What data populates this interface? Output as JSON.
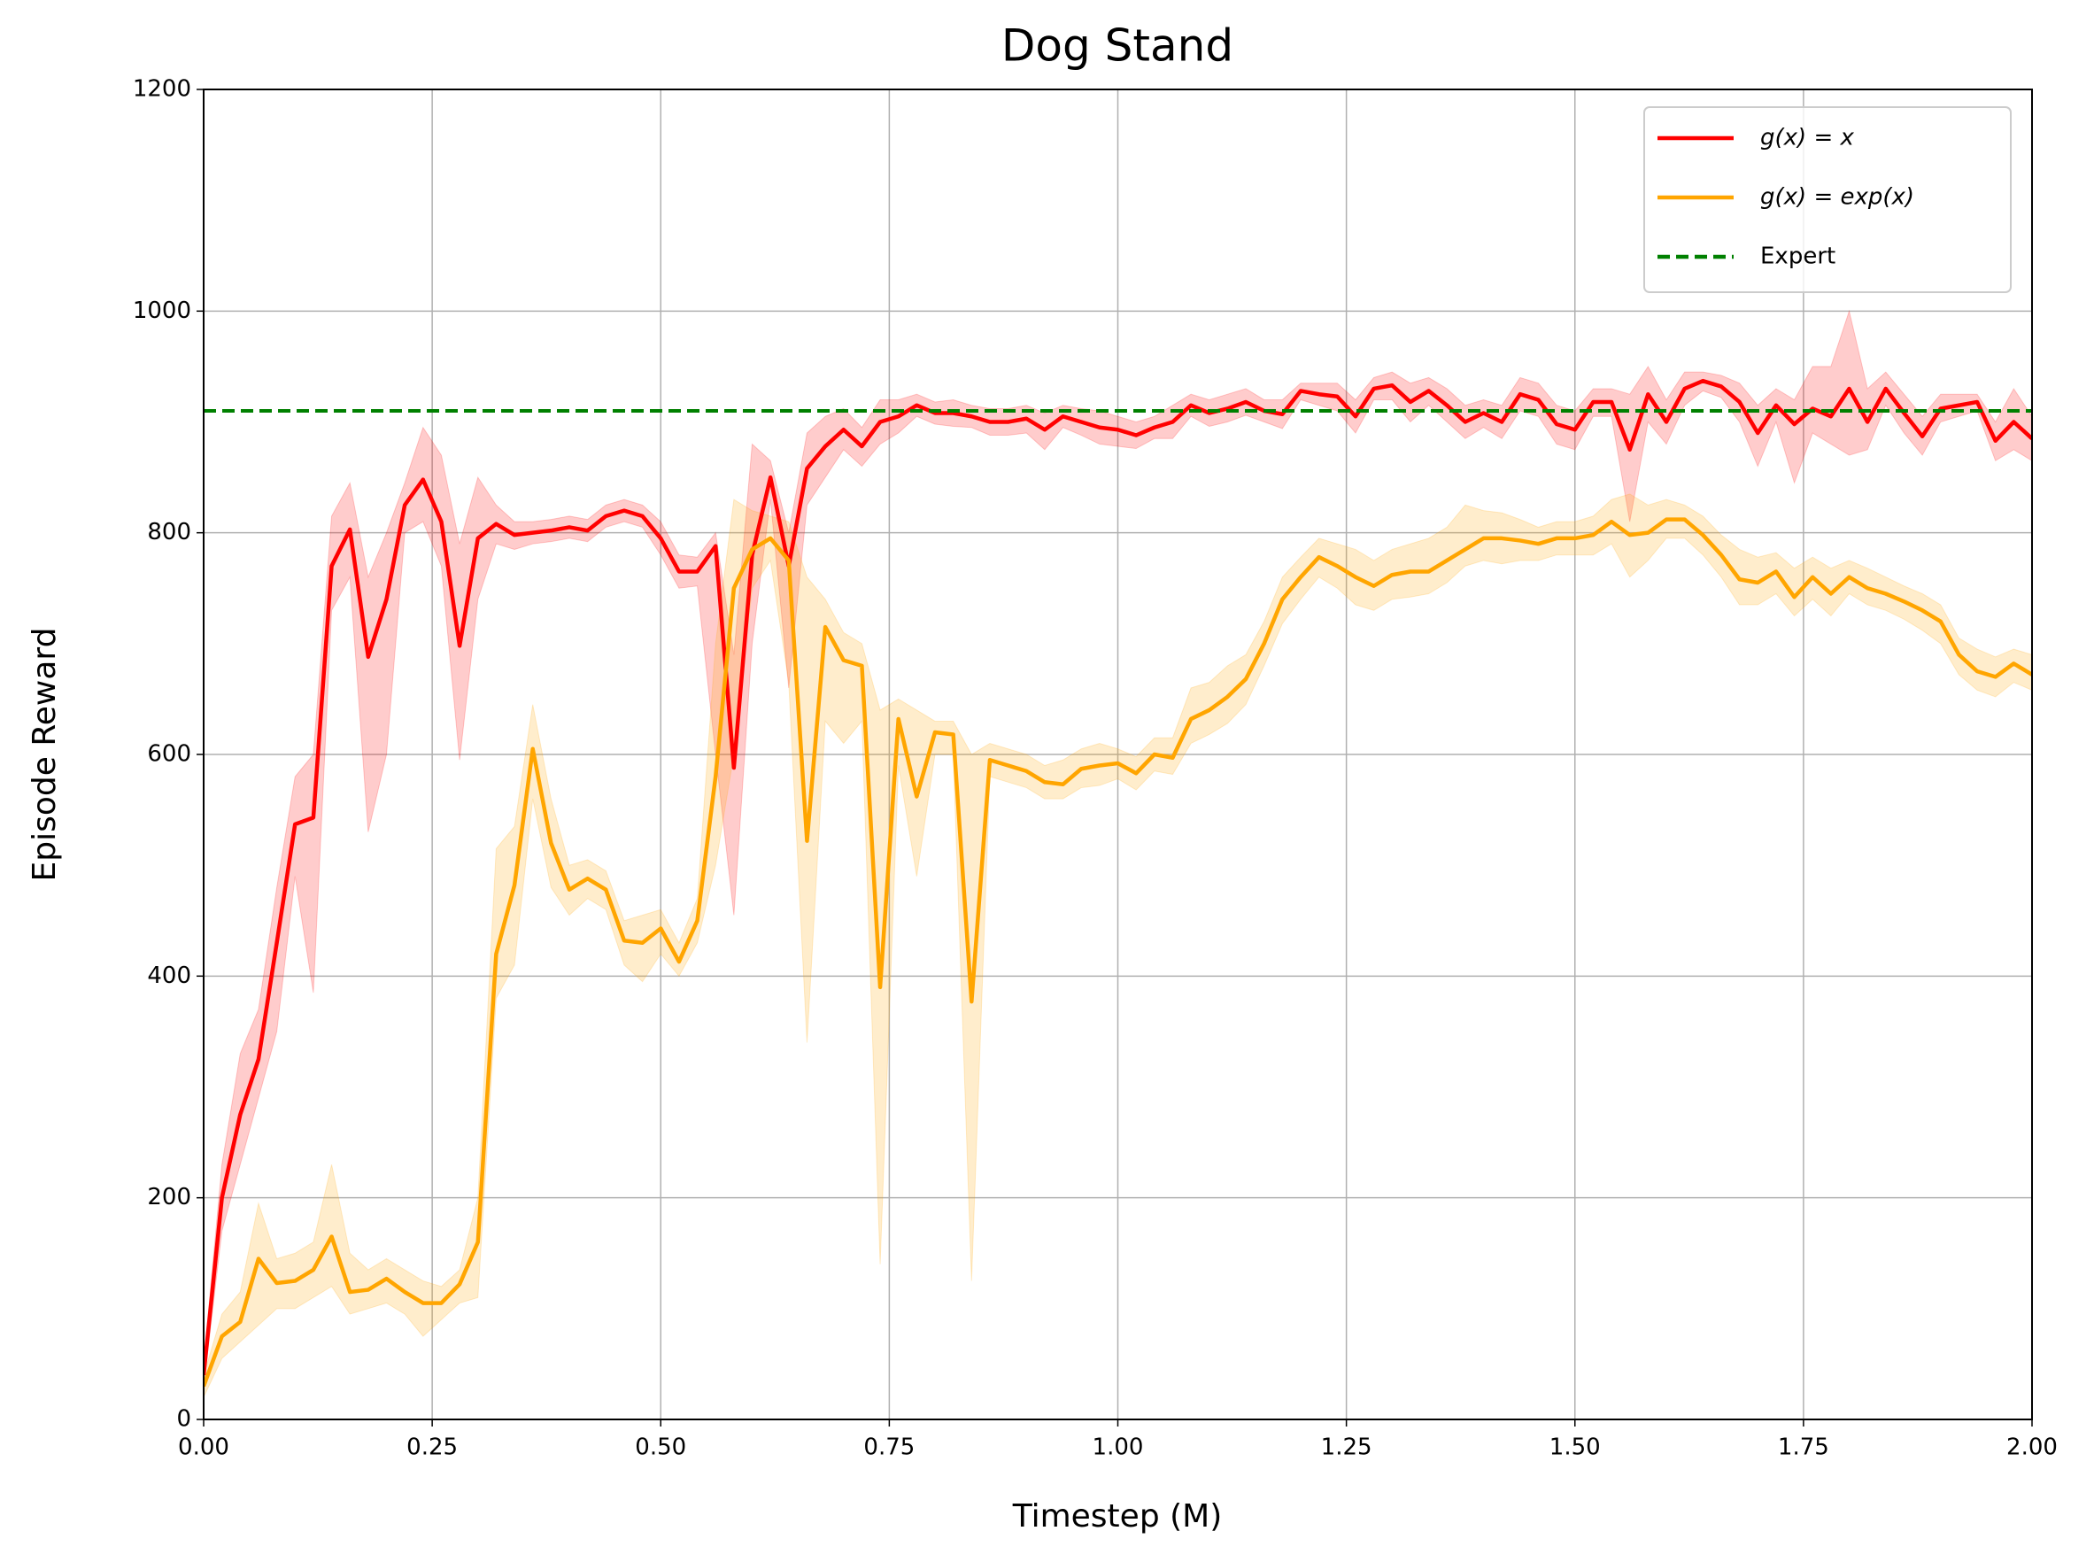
{
  "chart_data": {
    "type": "line",
    "title": "Dog Stand",
    "xlabel": "Timestep (M)",
    "ylabel": "Episode Reward",
    "x": [
      0,
      0.02,
      0.04,
      0.06,
      0.08,
      0.1,
      0.12,
      0.14,
      0.16,
      0.18,
      0.2,
      0.22,
      0.24,
      0.26,
      0.28,
      0.3,
      0.32,
      0.34,
      0.36,
      0.38,
      0.4,
      0.42,
      0.44,
      0.46,
      0.48,
      0.5,
      0.52,
      0.54,
      0.56,
      0.58,
      0.6,
      0.62,
      0.64,
      0.66,
      0.68,
      0.7,
      0.72,
      0.74,
      0.76,
      0.78,
      0.8,
      0.82,
      0.84,
      0.86,
      0.88,
      0.9,
      0.92,
      0.94,
      0.96,
      0.98,
      1,
      1.02,
      1.04,
      1.06,
      1.08,
      1.1,
      1.12,
      1.14,
      1.16,
      1.18,
      1.2,
      1.22,
      1.24,
      1.26,
      1.28,
      1.3,
      1.32,
      1.34,
      1.36,
      1.38,
      1.4,
      1.42,
      1.44,
      1.46,
      1.48,
      1.5,
      1.52,
      1.54,
      1.56,
      1.58,
      1.6,
      1.62,
      1.64,
      1.66,
      1.68,
      1.7,
      1.72,
      1.74,
      1.76,
      1.78,
      1.8,
      1.82,
      1.84,
      1.86,
      1.88,
      1.9,
      1.92,
      1.94,
      1.96,
      1.98,
      2
    ],
    "series": [
      {
        "name": "g(x) = x",
        "color": "#ff0000",
        "values": [
          40,
          200,
          275,
          325,
          430,
          537,
          543,
          770,
          803,
          688,
          740,
          825,
          848,
          810,
          698,
          795,
          808,
          798,
          800,
          802,
          805,
          802,
          815,
          820,
          815,
          795,
          765,
          765,
          788,
          588,
          780,
          850,
          770,
          858,
          878,
          893,
          878,
          900,
          905,
          915,
          908,
          908,
          905,
          900,
          900,
          903,
          893,
          905,
          900,
          895,
          893,
          888,
          895,
          900,
          915,
          908,
          912,
          918,
          910,
          907,
          928,
          925,
          923,
          905,
          930,
          933,
          918,
          928,
          915,
          900,
          908,
          900,
          925,
          920,
          898,
          893,
          918,
          918,
          875,
          925,
          900,
          930,
          937,
          932,
          918,
          890,
          915,
          898,
          912,
          905,
          930,
          900,
          930,
          908,
          887,
          912,
          915,
          918,
          883,
          900,
          885
        ],
        "upper": [
          50,
          230,
          330,
          370,
          480,
          580,
          600,
          815,
          845,
          760,
          800,
          845,
          895,
          870,
          790,
          850,
          825,
          810,
          810,
          812,
          815,
          812,
          825,
          830,
          825,
          810,
          780,
          778,
          800,
          690,
          880,
          865,
          800,
          890,
          905,
          912,
          895,
          920,
          920,
          925,
          918,
          920,
          915,
          912,
          912,
          915,
          908,
          915,
          912,
          910,
          905,
          900,
          905,
          915,
          925,
          920,
          925,
          930,
          920,
          920,
          935,
          935,
          935,
          920,
          940,
          945,
          935,
          940,
          930,
          915,
          920,
          915,
          940,
          935,
          915,
          910,
          930,
          930,
          925,
          950,
          920,
          945,
          945,
          942,
          935,
          915,
          930,
          920,
          950,
          950,
          1000,
          930,
          945,
          925,
          905,
          925,
          925,
          925,
          900,
          930,
          905
        ],
        "lower": [
          30,
          170,
          230,
          290,
          350,
          490,
          385,
          730,
          760,
          530,
          600,
          800,
          810,
          770,
          595,
          740,
          790,
          785,
          790,
          792,
          795,
          792,
          805,
          810,
          805,
          780,
          750,
          752,
          600,
          455,
          700,
          830,
          660,
          825,
          850,
          875,
          860,
          880,
          890,
          905,
          898,
          896,
          895,
          888,
          888,
          890,
          875,
          895,
          888,
          880,
          878,
          876,
          885,
          885,
          905,
          896,
          900,
          906,
          900,
          894,
          920,
          915,
          910,
          890,
          920,
          920,
          900,
          915,
          900,
          885,
          895,
          885,
          910,
          905,
          880,
          875,
          905,
          905,
          810,
          900,
          880,
          915,
          928,
          922,
          900,
          860,
          900,
          845,
          890,
          880,
          870,
          875,
          915,
          890,
          870,
          900,
          905,
          910,
          865,
          875,
          865
        ]
      },
      {
        "name": "g(x) = exp(x)",
        "color": "#ffa500",
        "values": [
          30,
          75,
          88,
          145,
          123,
          125,
          135,
          165,
          115,
          117,
          127,
          115,
          105,
          105,
          122,
          160,
          420,
          482,
          605,
          520,
          478,
          488,
          478,
          432,
          430,
          443,
          413,
          450,
          580,
          750,
          785,
          795,
          775,
          522,
          715,
          685,
          680,
          390,
          632,
          562,
          620,
          618,
          377,
          595,
          590,
          585,
          575,
          573,
          587,
          590,
          592,
          583,
          600,
          597,
          632,
          640,
          652,
          668,
          700,
          740,
          760,
          778,
          770,
          760,
          752,
          762,
          765,
          765,
          775,
          785,
          795,
          795,
          793,
          790,
          795,
          795,
          798,
          810,
          798,
          800,
          812,
          812,
          798,
          780,
          758,
          755,
          765,
          742,
          760,
          745,
          760,
          750,
          745,
          738,
          730,
          720,
          690,
          675,
          670,
          682,
          672
        ],
        "upper": [
          40,
          95,
          115,
          195,
          145,
          150,
          160,
          230,
          150,
          135,
          145,
          135,
          125,
          120,
          135,
          200,
          515,
          535,
          645,
          560,
          500,
          505,
          495,
          450,
          455,
          460,
          430,
          470,
          700,
          830,
          820,
          815,
          810,
          760,
          740,
          710,
          700,
          640,
          650,
          640,
          630,
          630,
          600,
          610,
          605,
          600,
          590,
          595,
          605,
          610,
          605,
          598,
          615,
          615,
          660,
          665,
          680,
          690,
          720,
          760,
          778,
          795,
          790,
          785,
          775,
          785,
          790,
          795,
          805,
          825,
          820,
          818,
          812,
          805,
          810,
          810,
          815,
          830,
          835,
          825,
          830,
          825,
          815,
          798,
          785,
          778,
          782,
          768,
          778,
          768,
          775,
          768,
          760,
          752,
          745,
          735,
          705,
          695,
          688,
          695,
          690
        ],
        "lower": [
          20,
          55,
          70,
          85,
          100,
          100,
          110,
          120,
          95,
          100,
          105,
          95,
          75,
          90,
          105,
          110,
          380,
          410,
          560,
          480,
          455,
          470,
          460,
          410,
          395,
          420,
          400,
          430,
          500,
          600,
          750,
          775,
          665,
          340,
          630,
          610,
          630,
          140,
          590,
          490,
          600,
          600,
          125,
          580,
          575,
          570,
          560,
          560,
          570,
          572,
          578,
          568,
          585,
          582,
          610,
          618,
          628,
          645,
          680,
          718,
          740,
          760,
          750,
          735,
          730,
          740,
          742,
          745,
          755,
          770,
          775,
          772,
          775,
          775,
          780,
          780,
          780,
          790,
          760,
          775,
          795,
          795,
          780,
          760,
          735,
          735,
          745,
          725,
          740,
          725,
          745,
          735,
          730,
          722,
          712,
          700,
          672,
          658,
          652,
          665,
          658
        ]
      }
    ],
    "reference_lines": [
      {
        "name": "Expert",
        "value": 910,
        "color": "#008000",
        "style": "dashed"
      }
    ],
    "xlim": [
      0,
      2
    ],
    "ylim": [
      0,
      1200
    ],
    "xticks": [
      {
        "value": 0,
        "label": "0.00"
      },
      0.25,
      {
        "value": 0.5,
        "label": "0.50"
      },
      0.75,
      {
        "value": 1,
        "label": "1.00"
      },
      1.25,
      {
        "value": 1.5,
        "label": "1.50"
      },
      1.75,
      {
        "value": 2,
        "label": "2.00"
      }
    ],
    "yticks": [
      0,
      200,
      400,
      600,
      800,
      1000,
      1200
    ],
    "grid": true,
    "legend": "upper right"
  }
}
